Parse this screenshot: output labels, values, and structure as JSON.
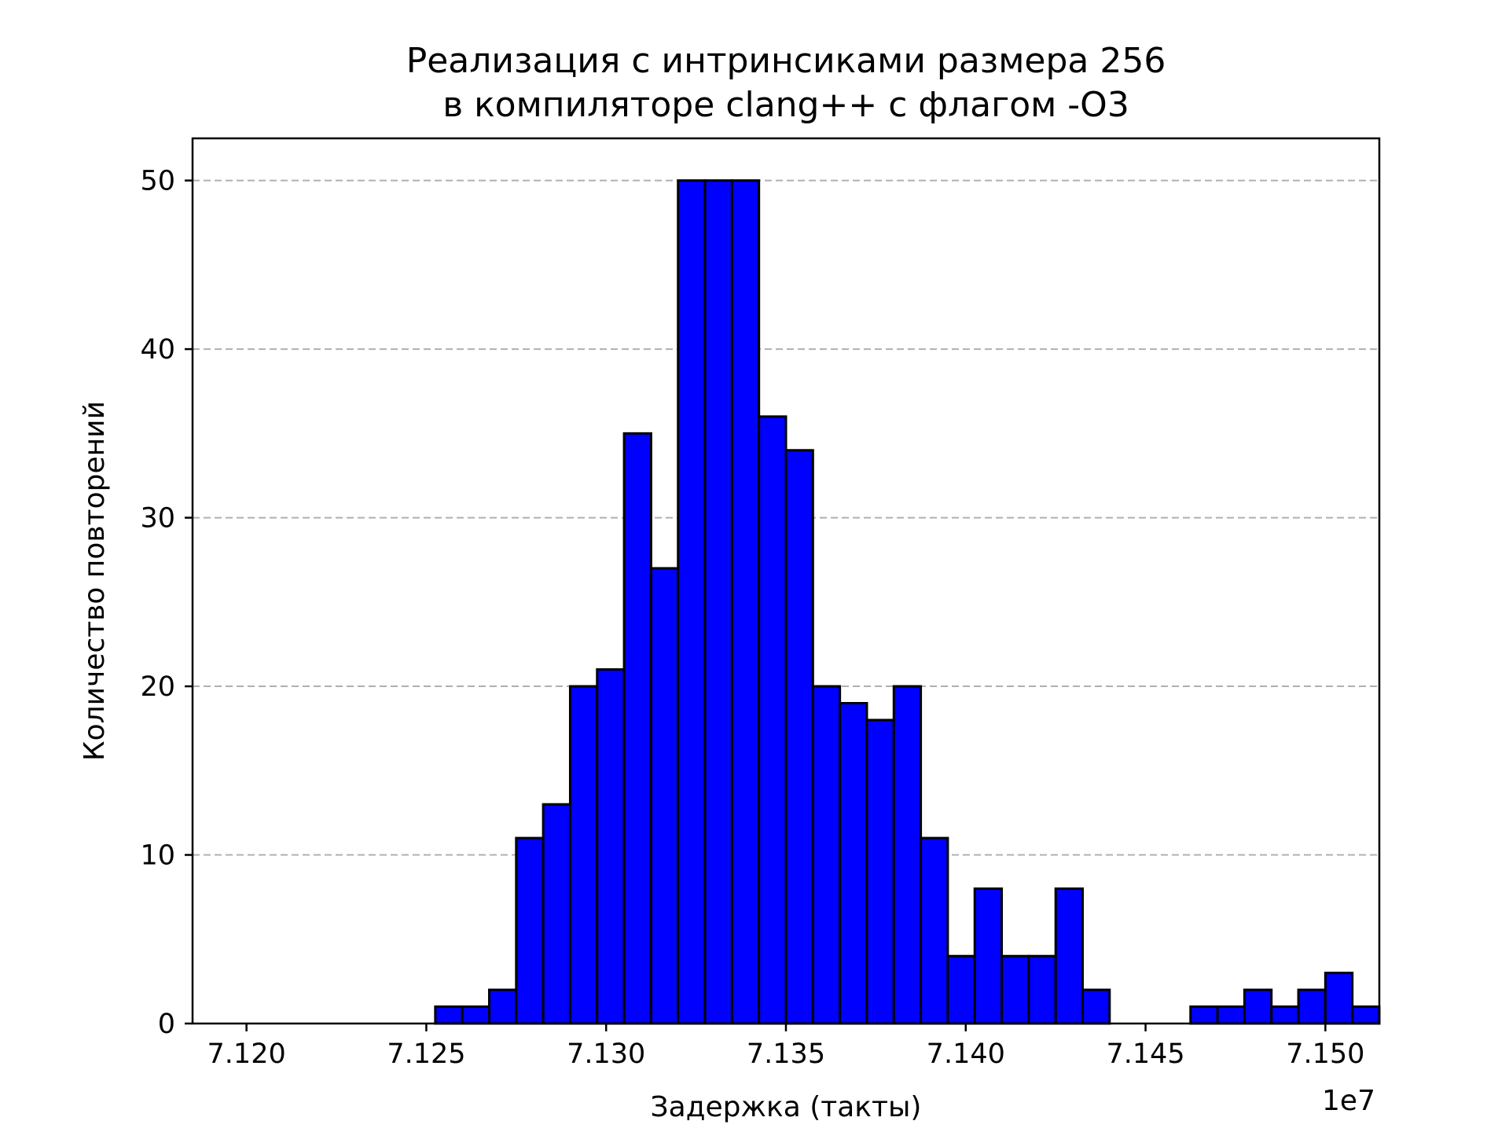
{
  "chart_data": {
    "type": "bar",
    "title_lines": [
      "Реализация с интринсиками размера 256",
      "в компиляторе clang++ с флагом -O3"
    ],
    "xlabel": "Задержка (такты)",
    "ylabel": "Количество повторений",
    "x_offset_text": "1e7",
    "xlim": [
      7.1185,
      7.1515
    ],
    "ylim": [
      0,
      52.5
    ],
    "xticks": [
      7.12,
      7.125,
      7.13,
      7.135,
      7.14,
      7.145,
      7.15
    ],
    "xtick_labels": [
      "7.120",
      "7.125",
      "7.130",
      "7.135",
      "7.140",
      "7.145",
      "7.150"
    ],
    "yticks": [
      0,
      10,
      20,
      30,
      40,
      50
    ],
    "ytick_labels": [
      "0",
      "10",
      "20",
      "30",
      "40",
      "50"
    ],
    "grid": "y-dashed",
    "colors": {
      "bar": "#0000ff",
      "edge": "#000000",
      "grid": "#b0b0b0"
    },
    "bin_start": 7.12,
    "bin_width": 0.00075,
    "values": [
      0,
      0,
      0,
      0,
      0,
      0,
      0,
      1,
      1,
      2,
      11,
      13,
      20,
      21,
      35,
      27,
      50,
      50,
      50,
      36,
      34,
      20,
      19,
      18,
      20,
      11,
      4,
      8,
      4,
      4,
      8,
      2,
      0,
      0,
      0,
      1,
      1,
      2,
      1,
      2,
      3,
      1
    ]
  }
}
